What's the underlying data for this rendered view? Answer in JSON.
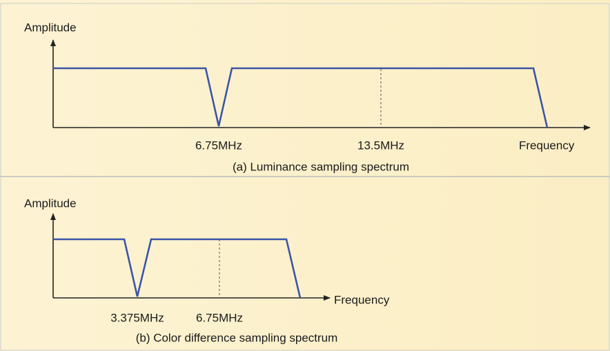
{
  "panels": [
    {
      "y_label": "Amplitude",
      "x_label": "Frequency",
      "markers": [
        "6.75MHz",
        "13.5MHz"
      ],
      "caption": "(a) Luminance sampling spectrum"
    },
    {
      "y_label": "Amplitude",
      "x_label": "Frequency",
      "markers": [
        "3.375MHz",
        "6.75MHz"
      ],
      "caption": "(b) Color difference sampling spectrum"
    }
  ]
}
